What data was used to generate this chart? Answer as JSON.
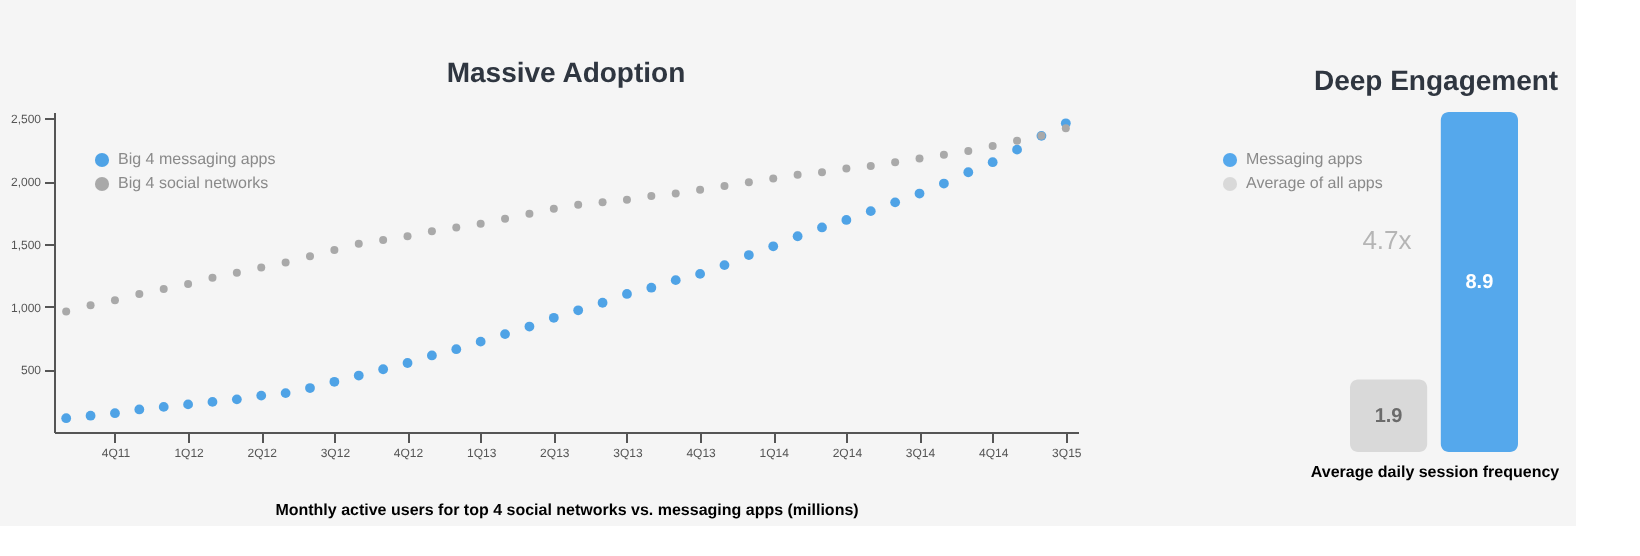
{
  "chart_data": [
    {
      "type": "scatter",
      "title": "Massive Adoption",
      "xlabel": "Monthly active users for top 4 social networks vs. messaging apps (millions)",
      "marker": "circle",
      "grid": false,
      "legend": "top left",
      "categories": [
        null,
        null,
        "4Q11",
        null,
        null,
        "1Q12",
        null,
        null,
        "2Q12",
        null,
        null,
        "3Q12",
        null,
        null,
        "4Q12",
        null,
        null,
        "1Q13",
        null,
        null,
        "2Q13",
        null,
        null,
        "3Q13",
        null,
        null,
        "4Q13",
        null,
        null,
        "1Q14",
        null,
        null,
        "2Q14",
        null,
        null,
        "3Q14",
        null,
        null,
        "4Q14",
        null,
        null,
        "3Q15"
      ],
      "ylim": [
        0,
        2550
      ],
      "yticks": [
        500,
        {
          "value": 1000,
          "label": "1,000"
        },
        {
          "value": 1500,
          "label": "1,500"
        },
        {
          "value": 2000,
          "label": "2,000"
        },
        {
          "value": 2500,
          "label": "2,500"
        }
      ],
      "series": [
        {
          "name": "Big 4 messaging apps",
          "color": "#4fa3e6",
          "values": [
            110,
            130,
            150,
            180,
            200,
            220,
            240,
            260,
            290,
            310,
            350,
            400,
            450,
            500,
            550,
            610,
            660,
            720,
            780,
            840,
            910,
            970,
            1030,
            1100,
            1150,
            1210,
            1260,
            1330,
            1410,
            1480,
            1560,
            1630,
            1690,
            1760,
            1830,
            1900,
            1980,
            2070,
            2150,
            2250,
            2360,
            2460
          ]
        },
        {
          "name": "Big 4 social networks",
          "color": "#a9a9a9",
          "values": [
            960,
            1010,
            1050,
            1100,
            1140,
            1180,
            1230,
            1270,
            1310,
            1350,
            1400,
            1450,
            1500,
            1530,
            1560,
            1600,
            1630,
            1660,
            1700,
            1740,
            1780,
            1810,
            1830,
            1850,
            1880,
            1900,
            1930,
            1960,
            1990,
            2020,
            2050,
            2070,
            2100,
            2120,
            2150,
            2180,
            2210,
            2240,
            2280,
            2320,
            2360,
            2420
          ]
        }
      ]
    },
    {
      "type": "bar",
      "title": "Deep Engagement",
      "xlabel": "Average daily session frequency",
      "categories": [
        null,
        null
      ],
      "stacked": true,
      "data_labels": true,
      "legend": "top left",
      "annotations": [
        "4.7x"
      ],
      "series": [
        {
          "name": "Messaging apps",
          "color": "#55a8ec",
          "values": [
            null,
            8.9
          ]
        },
        {
          "name": "Average of all apps",
          "color": "#d9d9d9",
          "values": [
            1.9,
            null
          ]
        }
      ]
    }
  ]
}
